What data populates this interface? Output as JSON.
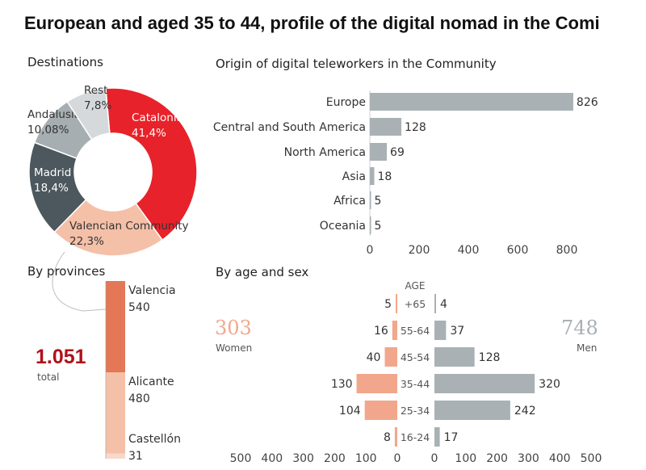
{
  "title": "European and aged 35 to 44, profile of the digital nomad in the Comi",
  "colors": {
    "red": "#e8222a",
    "salmon": "#f4c0a8",
    "light_gray": "#d6d9dc",
    "mid_gray": "#a6aeb2",
    "dark_slate": "#4c585e",
    "bar_gray": "#a9b1b5",
    "orange": "#e37756",
    "women": "#f2a78c",
    "total_red": "#b0121a"
  },
  "destinations": {
    "heading": "Destinations",
    "slices": [
      {
        "name": "Catalonia",
        "value": 41.4,
        "label": "41,4%",
        "color": "#e8222a"
      },
      {
        "name": "Valencian Community",
        "value": 22.3,
        "label": "22,3%",
        "color": "#f4c0a8"
      },
      {
        "name": "Madrid",
        "value": 18.4,
        "label": "18,4%",
        "color": "#4c585e"
      },
      {
        "name": "Andalusia",
        "value": 10.08,
        "label": "10,08%",
        "color": "#a6aeb2"
      },
      {
        "name": "Rest",
        "value": 7.8,
        "label": "7,8%",
        "color": "#d6d9dc"
      }
    ]
  },
  "provinces": {
    "heading": "By provinces",
    "total_value": "1.051",
    "total_label": "total",
    "items": [
      {
        "name": "Valencia",
        "value": 540,
        "color": "#e37756"
      },
      {
        "name": "Alicante",
        "value": 480,
        "color": "#f4c0a8"
      },
      {
        "name": "Castellón",
        "value": 31,
        "color": "#f7d9cb"
      }
    ]
  },
  "chart_data": [
    {
      "type": "bar",
      "title": "Origin of digital teleworkers in the Community",
      "orientation": "horizontal",
      "categories": [
        "Europe",
        "Central and South America",
        "North America",
        "Asia",
        "Africa",
        "Oceania"
      ],
      "values": [
        826,
        128,
        69,
        18,
        5,
        5
      ],
      "xlim": [
        0,
        850
      ],
      "xticks": [
        0,
        200,
        400,
        600,
        800
      ]
    },
    {
      "type": "bar",
      "title": "By age and sex",
      "orientation": "horizontal-pyramid",
      "axis_title": "AGE",
      "categories": [
        "+65",
        "55-64",
        "45-54",
        "35-44",
        "25-34",
        "16-24"
      ],
      "series": [
        {
          "name": "Women",
          "total": 303,
          "values": [
            5,
            16,
            40,
            130,
            104,
            8
          ]
        },
        {
          "name": "Men",
          "total": 748,
          "values": [
            4,
            37,
            128,
            320,
            242,
            17
          ]
        }
      ],
      "ticks_left": [
        "500",
        "400",
        "300",
        "200",
        "100",
        "0"
      ],
      "ticks_right": [
        "0",
        "100",
        "200",
        "300",
        "400",
        "500"
      ]
    }
  ]
}
